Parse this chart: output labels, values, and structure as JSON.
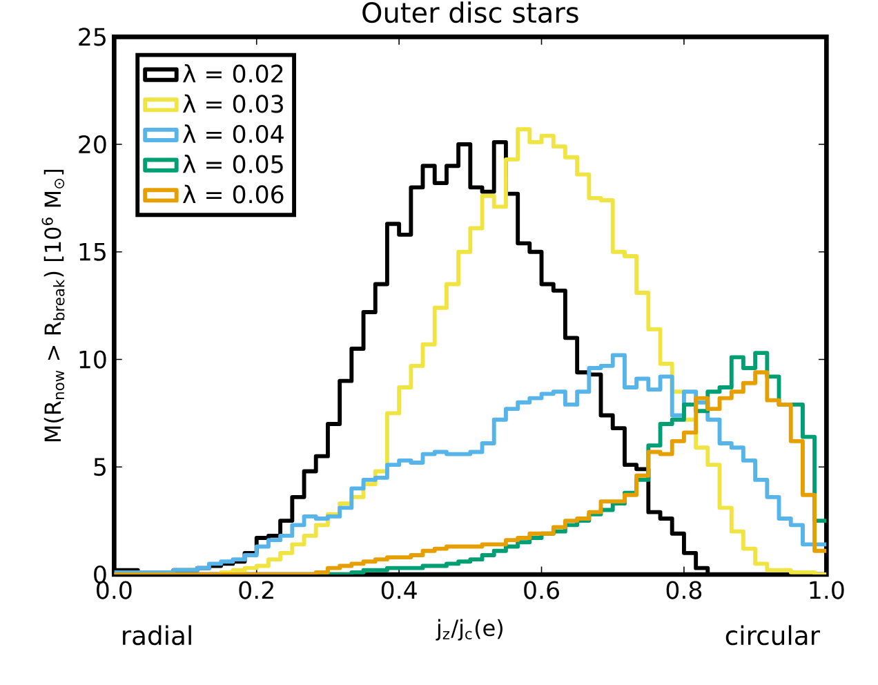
{
  "chart_data": {
    "type": "histogram",
    "title": "Outer disc stars",
    "xlabel": "j$_{z}$/j$_{c}$(e)",
    "ylabel": "M(R$_{now}$ > R$_{break}$) [10$^{6}$ M$_{⊙}$]",
    "annotations": [
      "radial",
      "circular"
    ],
    "bins": [
      0,
      0.0167,
      0.0333,
      0.05,
      0.0667,
      0.0833,
      0.1,
      0.1167,
      0.1333,
      0.15,
      0.1667,
      0.1833,
      0.2,
      0.2167,
      0.2333,
      0.25,
      0.2667,
      0.2833,
      0.3,
      0.3167,
      0.3333,
      0.35,
      0.3667,
      0.3833,
      0.4,
      0.4167,
      0.4333,
      0.45,
      0.4667,
      0.4833,
      0.5,
      0.5167,
      0.5333,
      0.55,
      0.5667,
      0.5833,
      0.6,
      0.6167,
      0.6333,
      0.65,
      0.6667,
      0.6833,
      0.7,
      0.7167,
      0.7333,
      0.75,
      0.7667,
      0.7833,
      0.8,
      0.8167,
      0.8333,
      0.85,
      0.8667,
      0.8833,
      0.9,
      0.9167,
      0.9333,
      0.95,
      0.9667,
      0.9833,
      1
    ],
    "series": [
      {
        "name": "λ = 0.02",
        "color": "#000000",
        "values": [
          0.2,
          0.2,
          0.1,
          0.1,
          0.1,
          0.2,
          0.2,
          0.3,
          0.4,
          0.5,
          0.6,
          1.0,
          1.7,
          1.8,
          2.5,
          3.6,
          4.8,
          5.5,
          7.0,
          9.0,
          10.5,
          12.2,
          13.5,
          16.3,
          15.8,
          18.0,
          19.0,
          18.2,
          19.0,
          20.0,
          18.0,
          17.8,
          20.1,
          17.7,
          15.4,
          15.0,
          13.5,
          13.2,
          11.0,
          9.4,
          9.3,
          7.4,
          6.8,
          5.1,
          4.9,
          2.9,
          2.6,
          1.9,
          1.0,
          0.3,
          0,
          0,
          0,
          0,
          0,
          0,
          0,
          0,
          0,
          0
        ]
      },
      {
        "name": "λ = 0.03",
        "color": "#f0e442",
        "values": [
          0,
          0,
          0,
          0,
          0,
          0,
          0,
          0,
          0,
          0.1,
          0.2,
          0.3,
          0.4,
          0.7,
          1.0,
          1.4,
          1.8,
          2.3,
          2.8,
          3.3,
          3.6,
          4.2,
          4.8,
          7.5,
          8.7,
          9.7,
          10.7,
          12.4,
          13.5,
          15.0,
          16.1,
          17.6,
          17.1,
          19.3,
          20.7,
          20.1,
          20.4,
          19.9,
          19.4,
          18.6,
          17.5,
          17.4,
          15.0,
          14.8,
          13.1,
          11.4,
          9.8,
          8.5,
          7.2,
          5.9,
          5.1,
          3.1,
          2.0,
          1.2,
          0.5,
          0.2,
          0.2,
          0.1,
          0.1,
          0
        ]
      },
      {
        "name": "λ = 0.04",
        "color": "#56b4e9",
        "values": [
          0.1,
          0.1,
          0.1,
          0.1,
          0.1,
          0.2,
          0.2,
          0.3,
          0.5,
          0.6,
          0.7,
          0.9,
          1.3,
          1.6,
          1.8,
          2.3,
          2.7,
          2.6,
          2.7,
          3.1,
          4.0,
          4.4,
          4.5,
          5.1,
          5.3,
          5.2,
          5.6,
          5.7,
          5.6,
          5.6,
          5.7,
          6.1,
          7.2,
          7.7,
          8.0,
          8.2,
          8.4,
          8.5,
          7.9,
          8.5,
          9.6,
          9.7,
          10.2,
          8.7,
          9.1,
          8.6,
          9.2,
          7.4,
          8.5,
          8.0,
          7.2,
          6.1,
          5.9,
          5.3,
          4.4,
          3.6,
          2.6,
          2.3,
          1.4,
          1.4
        ]
      },
      {
        "name": "λ = 0.05",
        "color": "#009e73",
        "values": [
          0,
          0,
          0,
          0,
          0,
          0,
          0,
          0,
          0,
          0,
          0,
          0,
          0,
          0,
          0,
          0,
          0,
          0,
          0,
          0,
          0.1,
          0.2,
          0.2,
          0.3,
          0.3,
          0.3,
          0.4,
          0.4,
          0.5,
          0.6,
          0.7,
          0.9,
          1.1,
          1.3,
          1.5,
          1.7,
          1.9,
          2.0,
          2.3,
          2.5,
          2.8,
          3.0,
          3.3,
          3.8,
          4.4,
          6.0,
          7.0,
          7.2,
          7.9,
          7.6,
          8.5,
          8.7,
          10.1,
          9.6,
          10.3,
          9.2,
          7.9,
          7.9,
          6.4,
          2.5
        ]
      },
      {
        "name": "λ = 0.06",
        "color": "#e69f00",
        "values": [
          0,
          0,
          0,
          0,
          0,
          0,
          0,
          0,
          0,
          0,
          0,
          0,
          0,
          0,
          0,
          0,
          0,
          0.1,
          0.3,
          0.4,
          0.5,
          0.6,
          0.7,
          0.8,
          0.8,
          0.9,
          1.1,
          1.2,
          1.3,
          1.3,
          1.3,
          1.4,
          1.4,
          1.6,
          1.7,
          1.9,
          1.9,
          2.2,
          2.5,
          2.6,
          2.9,
          3.4,
          3.4,
          3.7,
          4.6,
          5.7,
          5.6,
          6.2,
          6.6,
          8.2,
          7.7,
          8.2,
          8.5,
          8.9,
          9.4,
          8.1,
          7.9,
          6.2,
          3.7,
          1.1
        ]
      }
    ],
    "xlim": [
      0,
      1
    ],
    "ylim": [
      0,
      25
    ],
    "xticks": [
      {
        "value": 0,
        "label": "0.0"
      },
      {
        "value": 0.2,
        "label": "0.2"
      },
      {
        "value": 0.4,
        "label": "0.4"
      },
      {
        "value": 0.6,
        "label": "0.6"
      },
      {
        "value": 0.8,
        "label": "0.8"
      },
      {
        "value": 1,
        "label": "1.0"
      }
    ],
    "yticks": [
      0,
      5,
      10,
      15,
      20,
      25
    ],
    "legend": "top left"
  }
}
